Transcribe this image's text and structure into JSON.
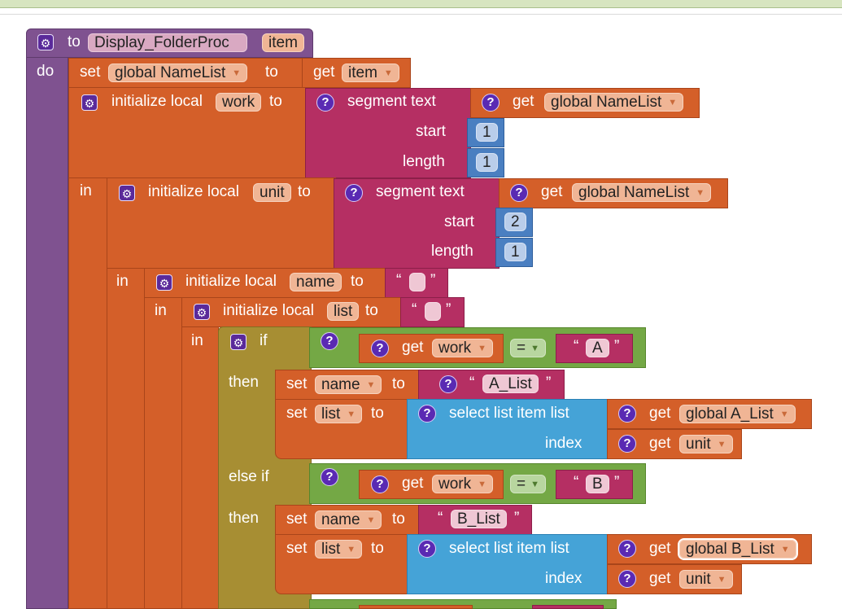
{
  "proc": {
    "kw_to": "to",
    "name": "Display_FolderProc",
    "param": "item",
    "kw_do": "do"
  },
  "kw": {
    "set": "set",
    "to": "to",
    "get": "get",
    "in": "in",
    "init_local": "initialize local",
    "segment_text": "segment  text",
    "start": "start",
    "length": "length",
    "if": "if",
    "then": "then",
    "else_if": "else if",
    "eq": "=",
    "select_list_item": "select list item  list",
    "index": "index",
    "quote_open": "“",
    "quote_close": "”"
  },
  "vars": {
    "global_namelist": "global NameList",
    "item": "item",
    "work": "work",
    "unit": "unit",
    "name": "name",
    "list": "list",
    "global_a_list": "global A_List",
    "global_b_list": "global B_List"
  },
  "values": {
    "n1": "1",
    "n1b": "1",
    "n2": "2",
    "n1c": "1",
    "A": "A",
    "A_List": "A_List",
    "B": "B",
    "B_List": "B_List"
  },
  "icons": {
    "gear": "gear-icon",
    "help": "question-mark-icon",
    "dropdown": "chevron-down-icon"
  },
  "colors": {
    "procedure": "#7f5290",
    "variables": "#d45f29",
    "control": "#a78e33",
    "text": "#b52f63",
    "math": "#4a7fc1",
    "lists": "#45a3d7",
    "logic": "#74a845"
  }
}
